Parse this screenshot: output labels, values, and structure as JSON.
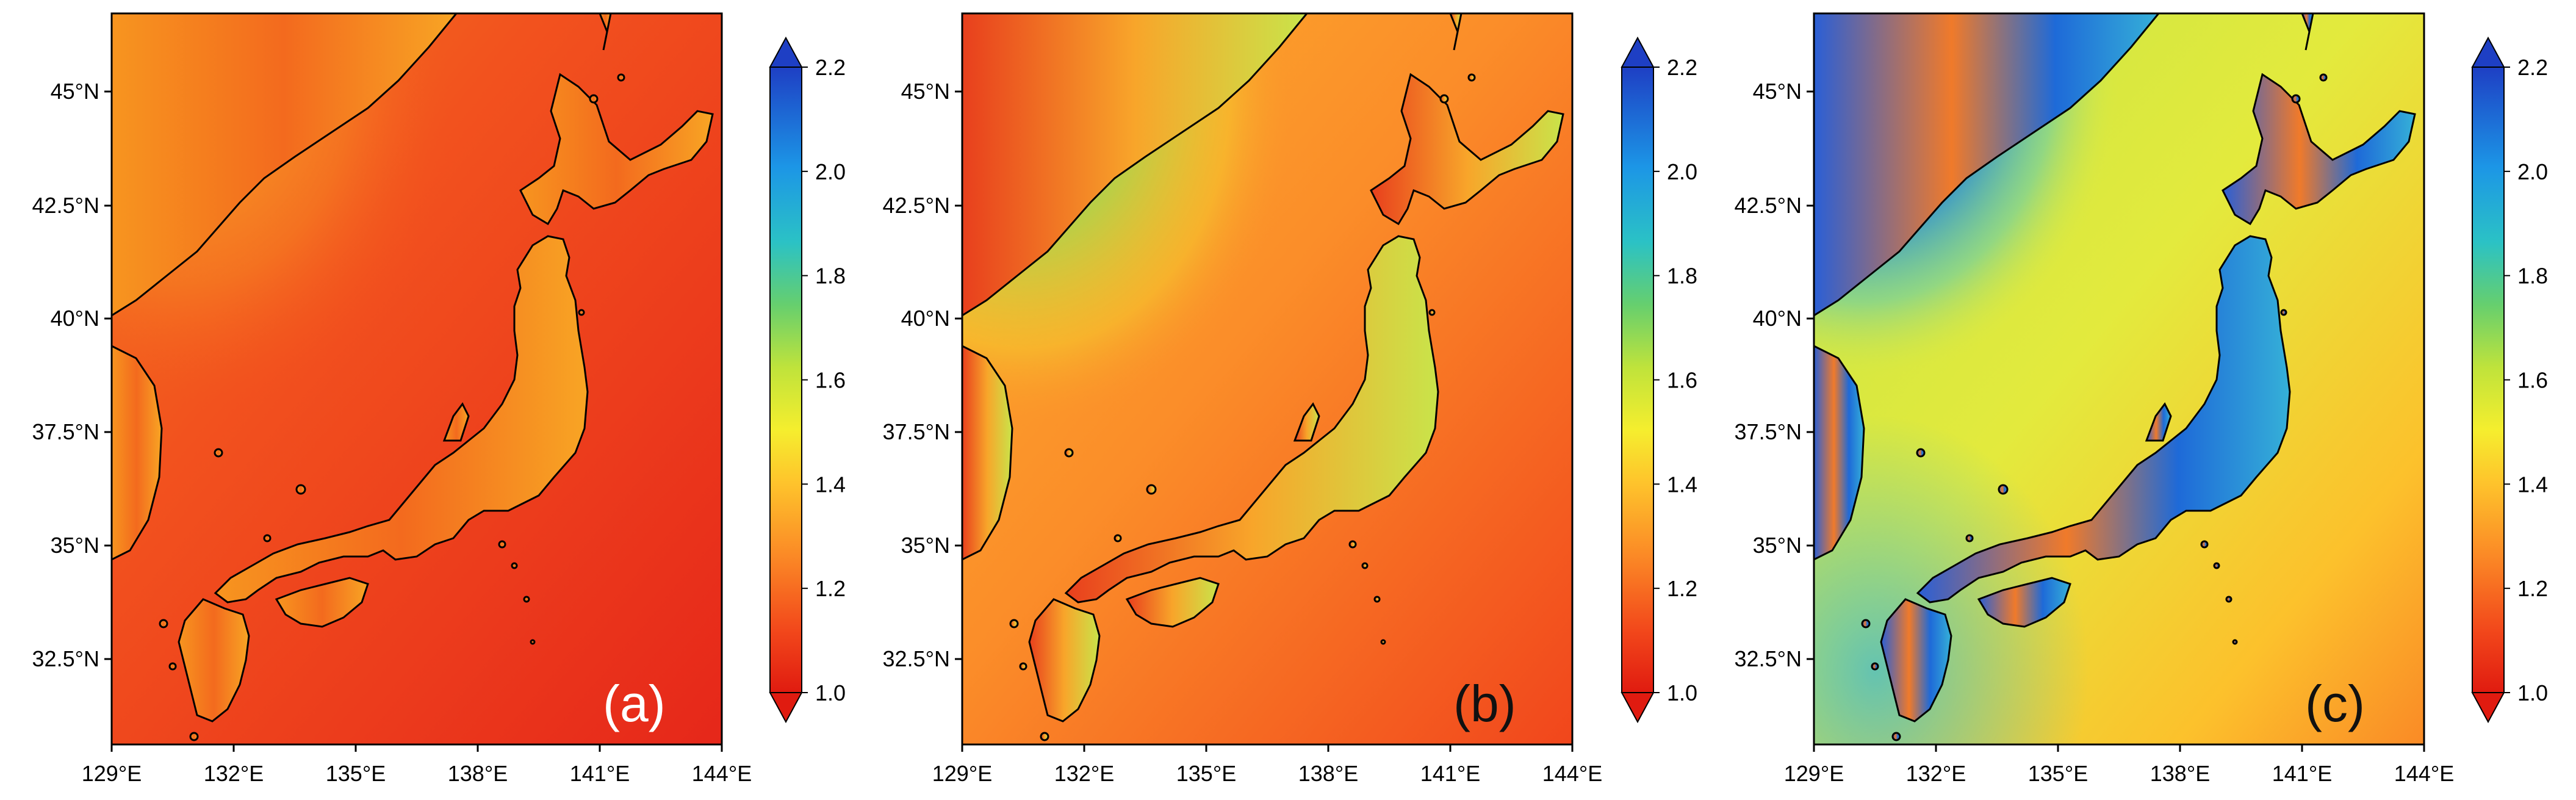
{
  "figure": {
    "panels": [
      {
        "id": "a",
        "label": "(a)",
        "scheme": "a"
      },
      {
        "id": "b",
        "label": "(b)",
        "scheme": "b"
      },
      {
        "id": "c",
        "label": "(c)",
        "scheme": "c"
      }
    ],
    "lon_ticks": [
      "129°E",
      "132°E",
      "135°E",
      "138°E",
      "141°E",
      "144°E"
    ],
    "lat_ticks": [
      "45°N",
      "42.5°N",
      "40°N",
      "37.5°N",
      "35°N",
      "32.5°N"
    ],
    "colorbar": {
      "ticks": [
        "2.2",
        "2.0",
        "1.8",
        "1.6",
        "1.4",
        "1.2",
        "1.0"
      ],
      "range": [
        1.0,
        2.2
      ],
      "extend": "both",
      "colormap": "jet-reversed",
      "stops": [
        "#d7191c",
        "#fc4e2a",
        "#fd8d3c",
        "#fed52c",
        "#d9ef2f",
        "#8bd45a",
        "#33c1b8",
        "#1ea3e6",
        "#1f6fd6",
        "#1e3fb8"
      ]
    },
    "colors": {
      "land_outline": "#000000",
      "panel_a_ocean": "#f24a1f",
      "panel_b_ocean": "#fb8a2a",
      "panel_c_ocean": "#d8e84a"
    }
  }
}
